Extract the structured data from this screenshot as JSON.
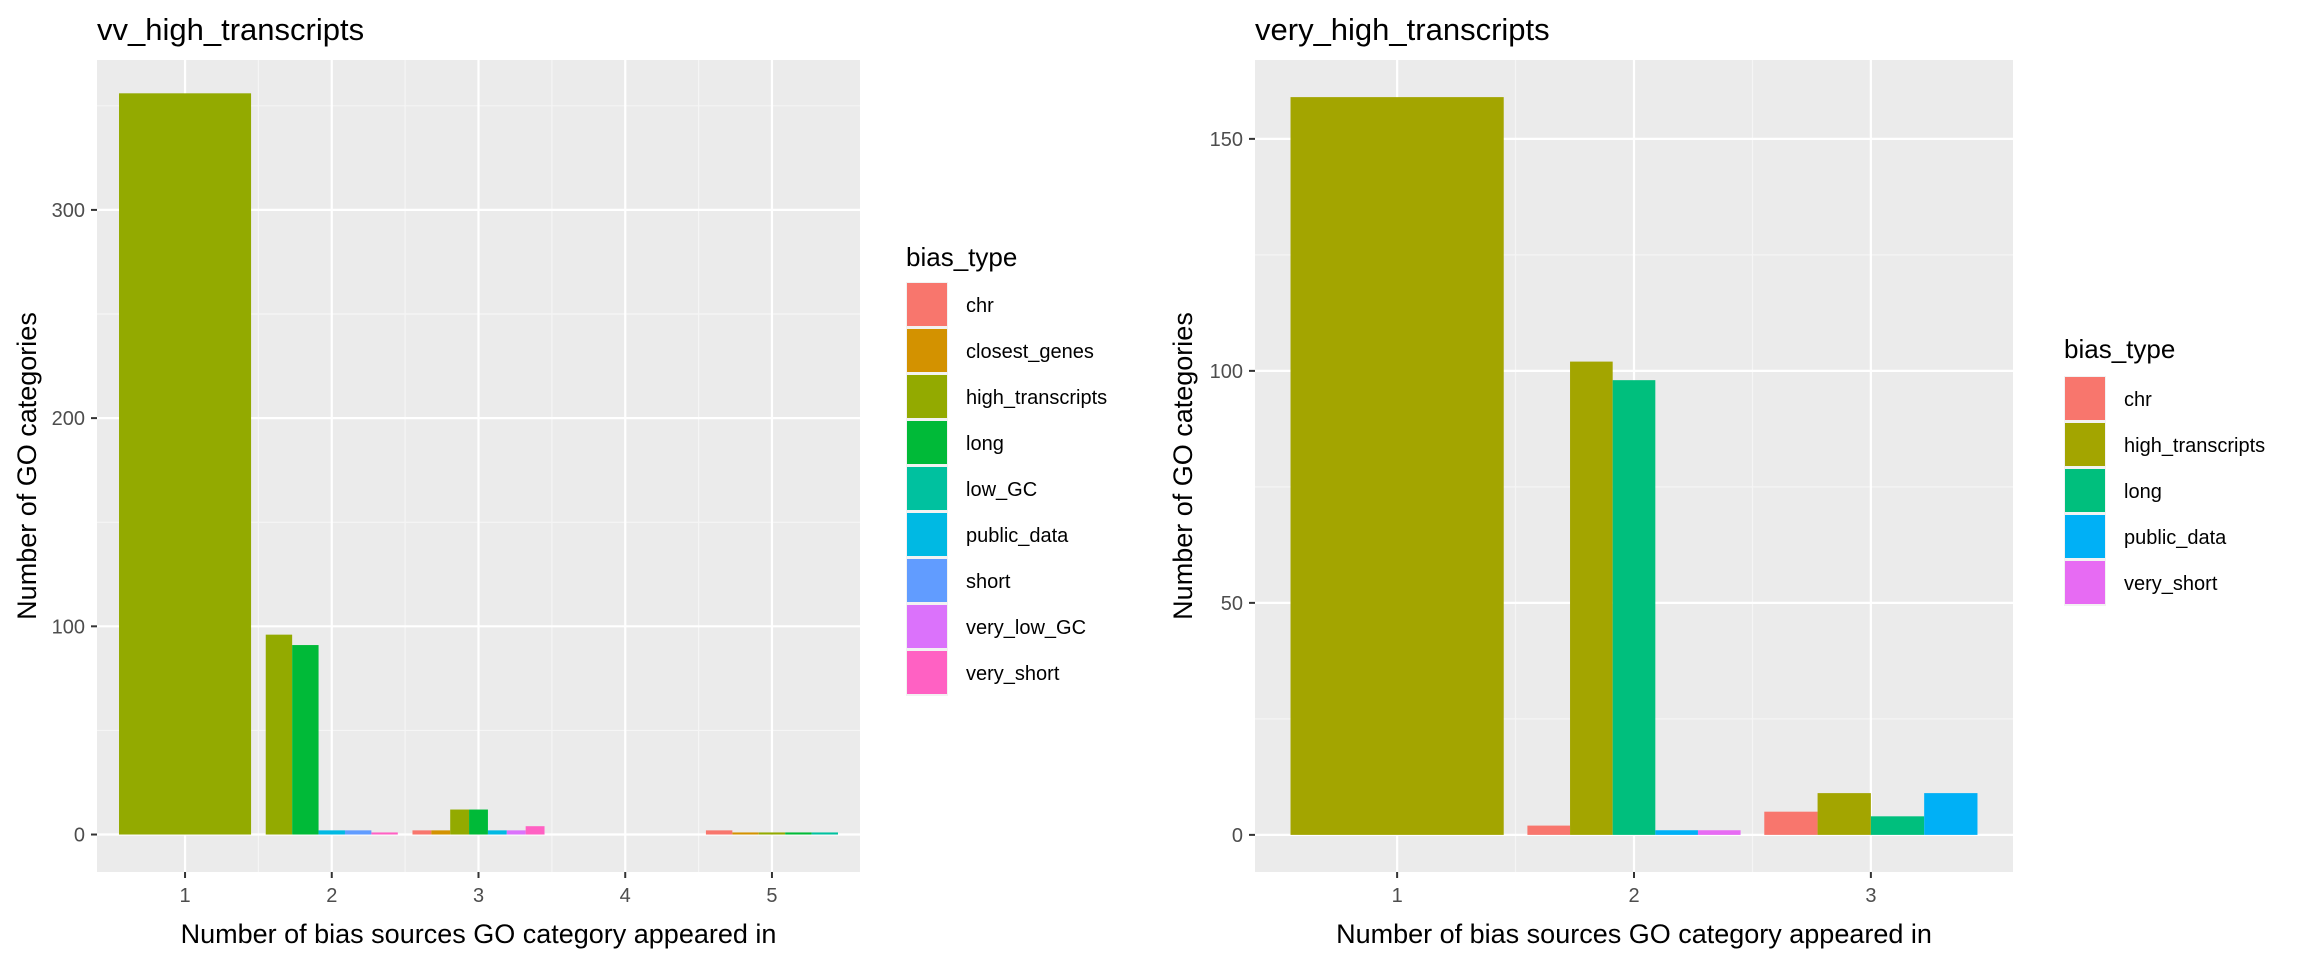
{
  "chart_data": [
    {
      "type": "bar",
      "title": "vv_high_transcripts",
      "xlabel": "Number of bias sources GO category appeared in",
      "ylabel": "Number of GO categories",
      "categories": [
        "1",
        "2",
        "3",
        "4",
        "5"
      ],
      "ylim": [
        -18,
        372
      ],
      "yticks": [
        0,
        100,
        200,
        300
      ],
      "grid": true,
      "legend": {
        "title": "bias_type",
        "position": "right"
      },
      "groups": [
        {
          "x": "1",
          "bars": [
            {
              "series": "high_transcripts",
              "value": 356
            }
          ]
        },
        {
          "x": "2",
          "bars": [
            {
              "series": "high_transcripts",
              "value": 96
            },
            {
              "series": "long",
              "value": 91
            },
            {
              "series": "public_data",
              "value": 2
            },
            {
              "series": "short",
              "value": 2
            },
            {
              "series": "very_short",
              "value": 1
            }
          ]
        },
        {
          "x": "3",
          "bars": [
            {
              "series": "chr",
              "value": 2
            },
            {
              "series": "closest_genes",
              "value": 2
            },
            {
              "series": "high_transcripts",
              "value": 12
            },
            {
              "series": "long",
              "value": 12
            },
            {
              "series": "public_data",
              "value": 2
            },
            {
              "series": "very_low_GC",
              "value": 2
            },
            {
              "series": "very_short",
              "value": 4
            }
          ]
        },
        {
          "x": "4",
          "bars": []
        },
        {
          "x": "5",
          "bars": [
            {
              "series": "chr",
              "value": 2
            },
            {
              "series": "closest_genes",
              "value": 1
            },
            {
              "series": "high_transcripts",
              "value": 1
            },
            {
              "series": "long",
              "value": 1
            },
            {
              "series": "low_GC",
              "value": 1
            }
          ]
        }
      ],
      "series": [
        {
          "name": "chr",
          "color": "#F8766D"
        },
        {
          "name": "closest_genes",
          "color": "#D39200"
        },
        {
          "name": "high_transcripts",
          "color": "#93AA00"
        },
        {
          "name": "long",
          "color": "#00BA38"
        },
        {
          "name": "low_GC",
          "color": "#00C19F"
        },
        {
          "name": "public_data",
          "color": "#00B9E3"
        },
        {
          "name": "short",
          "color": "#619CFF"
        },
        {
          "name": "very_low_GC",
          "color": "#DB72FB"
        },
        {
          "name": "very_short",
          "color": "#FF61C3"
        }
      ]
    },
    {
      "type": "bar",
      "title": "very_high_transcripts",
      "xlabel": "Number of bias sources GO category appeared in",
      "ylabel": "Number of GO categories",
      "categories": [
        "1",
        "2",
        "3"
      ],
      "ylim": [
        -8,
        167
      ],
      "yticks": [
        0,
        50,
        100,
        150
      ],
      "grid": true,
      "legend": {
        "title": "bias_type",
        "position": "right"
      },
      "groups": [
        {
          "x": "1",
          "bars": [
            {
              "series": "high_transcripts",
              "value": 159
            }
          ]
        },
        {
          "x": "2",
          "bars": [
            {
              "series": "chr",
              "value": 2
            },
            {
              "series": "high_transcripts",
              "value": 102
            },
            {
              "series": "long",
              "value": 98
            },
            {
              "series": "public_data",
              "value": 1
            },
            {
              "series": "very_short",
              "value": 1
            }
          ]
        },
        {
          "x": "3",
          "bars": [
            {
              "series": "chr",
              "value": 5
            },
            {
              "series": "high_transcripts",
              "value": 9
            },
            {
              "series": "long",
              "value": 4
            },
            {
              "series": "public_data",
              "value": 9
            }
          ]
        }
      ],
      "series": [
        {
          "name": "chr",
          "color": "#F8766D"
        },
        {
          "name": "high_transcripts",
          "color": "#A3A500"
        },
        {
          "name": "long",
          "color": "#00BF7D"
        },
        {
          "name": "public_data",
          "color": "#00B0F6"
        },
        {
          "name": "very_short",
          "color": "#E76BF3"
        }
      ]
    }
  ]
}
